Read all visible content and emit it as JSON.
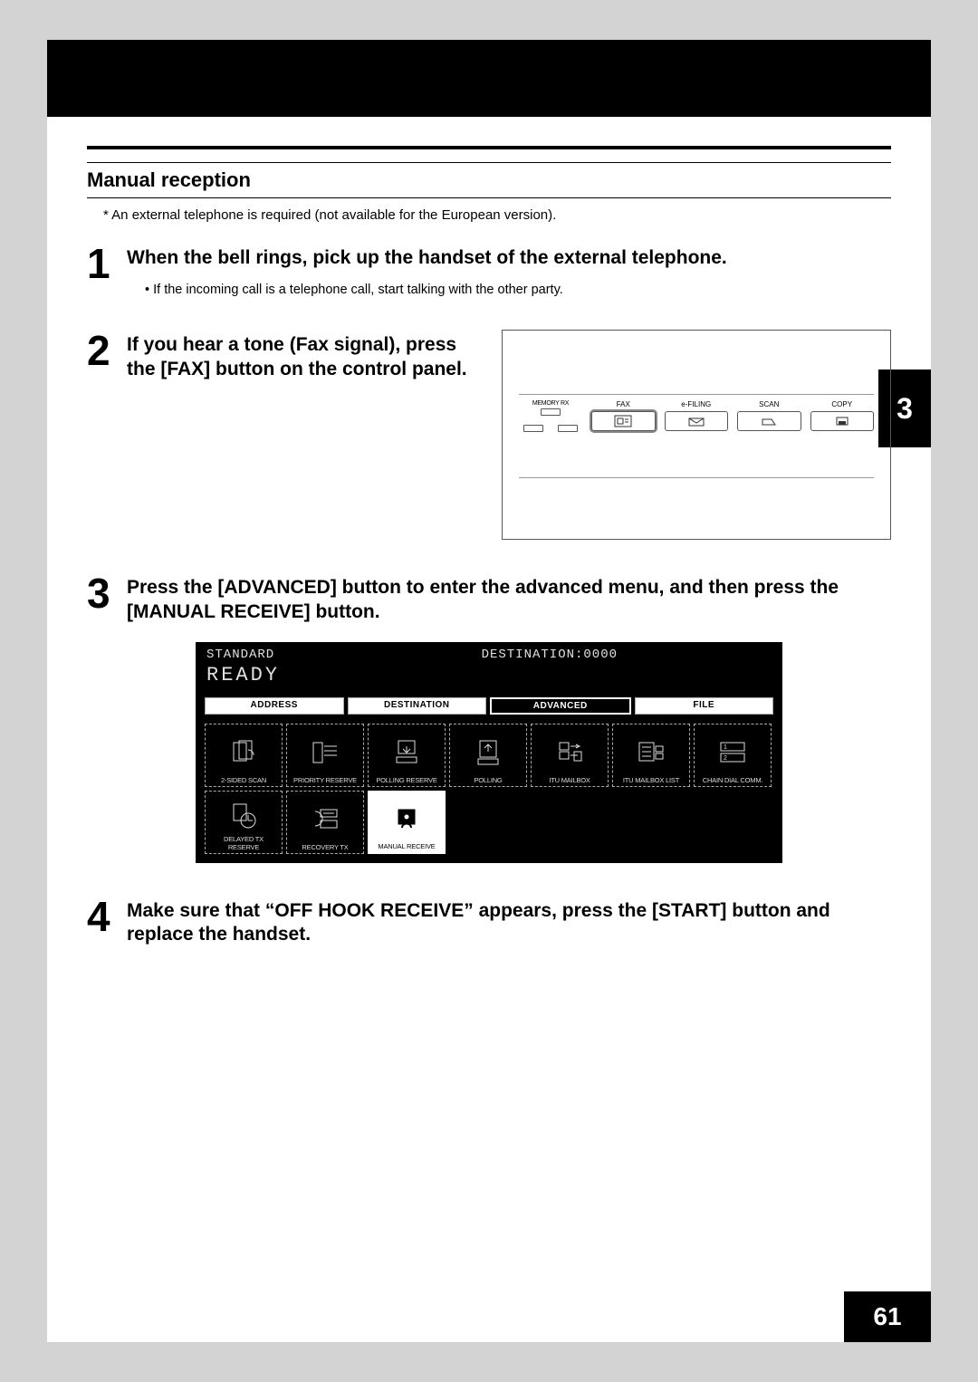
{
  "section_title": "Manual reception",
  "footnote": "*    An external telephone is required (not available for the European version).",
  "chapter_tab": "3",
  "page_number": "61",
  "steps": {
    "s1": {
      "num": "1",
      "heading": "When the bell rings, pick up the handset of the external telephone.",
      "sub": "•  If the incoming call is a telephone call, start talking with the other party."
    },
    "s2": {
      "num": "2",
      "heading": "If you hear a tone (Fax signal), press the [FAX] button on the control panel."
    },
    "s3": {
      "num": "3",
      "heading": "Press the [ADVANCED] button to enter the advanced menu, and then press the [MANUAL RECEIVE] button."
    },
    "s4": {
      "num": "4",
      "heading": "Make sure that “OFF HOOK RECEIVE” appears, press the [START] button and replace the handset."
    }
  },
  "panel": {
    "memory_rx": "MEMORY RX",
    "buttons": [
      "FAX",
      "e-FILING",
      "SCAN",
      "COPY"
    ]
  },
  "lcd": {
    "standard": "STANDARD",
    "destination": "DESTINATION:0000",
    "ready": "READY",
    "tabs": [
      "ADDRESS",
      "DESTINATION",
      "ADVANCED",
      "FILE"
    ],
    "active_tab": 2,
    "cells": [
      "2-SIDED SCAN",
      "PRIORITY RESERVE",
      "POLLING RESERVE",
      "POLLING",
      "ITU MAILBOX",
      "ITU MAILBOX LIST",
      "CHAIN DIAL COMM.",
      "DELAYED TX RESERVE",
      "RECOVERY TX",
      "MANUAL RECEIVE"
    ],
    "active_cell": 9
  }
}
